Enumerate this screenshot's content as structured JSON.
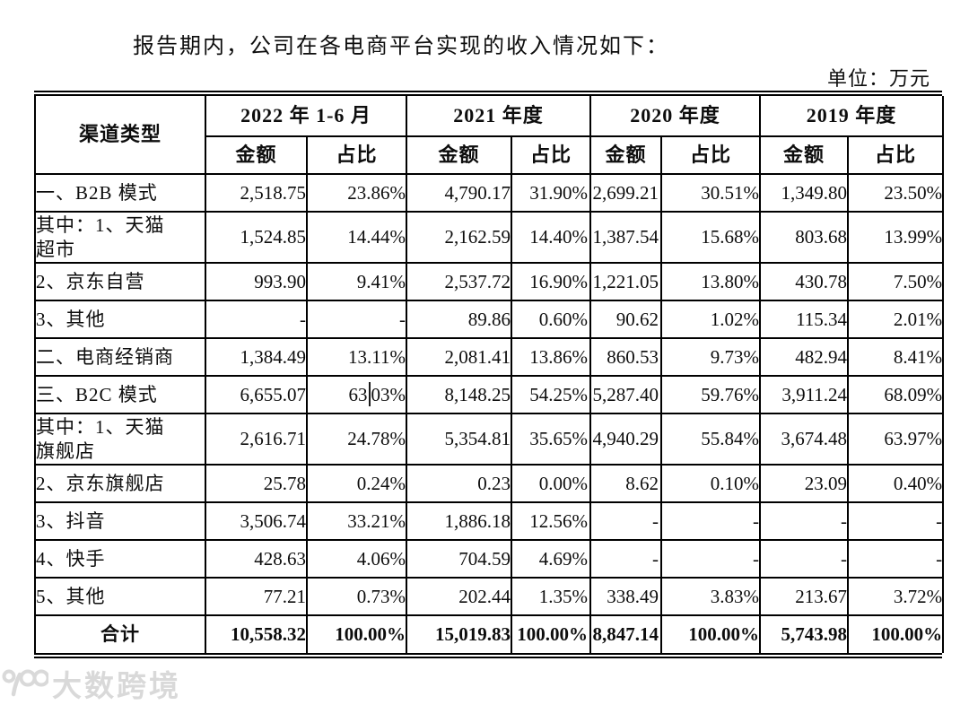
{
  "page": {
    "intro_text": "报告期内，公司在各电商平台实现的收入情况如下：",
    "unit_label": "单位：万元"
  },
  "table": {
    "corner_header": "渠道类型",
    "period_headers": [
      "2022 年 1-6 月",
      "2021 年度",
      "2020 年度",
      "2019 年度"
    ],
    "sub_headers": [
      "金额",
      "占比"
    ],
    "rows": [
      {
        "label": "一、B2B 模式",
        "tall": false,
        "total": false,
        "cells": [
          "2,518.75",
          "23.86%",
          "4,790.17",
          "31.90%",
          "2,699.21",
          "30.51%",
          "1,349.80",
          "23.50%"
        ]
      },
      {
        "label": "其中：1、天猫\n超市",
        "tall": true,
        "total": false,
        "cells": [
          "1,524.85",
          "14.44%",
          "2,162.59",
          "14.40%",
          "1,387.54",
          "15.68%",
          "803.68",
          "13.99%"
        ]
      },
      {
        "label": "2、京东自营",
        "tall": false,
        "total": false,
        "cells": [
          "993.90",
          "9.41%",
          "2,537.72",
          "16.90%",
          "1,221.05",
          "13.80%",
          "430.78",
          "7.50%"
        ]
      },
      {
        "label": "3、其他",
        "tall": false,
        "total": false,
        "cells": [
          "-",
          "-",
          "89.86",
          "0.60%",
          "90.62",
          "1.02%",
          "115.34",
          "2.01%"
        ]
      },
      {
        "label": "二、电商经销商",
        "tall": false,
        "total": false,
        "cells": [
          "1,384.49",
          "13.11%",
          "2,081.41",
          "13.86%",
          "860.53",
          "9.73%",
          "482.94",
          "8.41%"
        ]
      },
      {
        "label": "三、B2C 模式",
        "tall": false,
        "total": false,
        "cells": [
          "6,655.07",
          "63|03%",
          "8,148.25",
          "54.25%",
          "5,287.40",
          "59.76%",
          "3,911.24",
          "68.09%"
        ]
      },
      {
        "label": "其中：1、天猫\n旗舰店",
        "tall": true,
        "total": false,
        "cells": [
          "2,616.71",
          "24.78%",
          "5,354.81",
          "35.65%",
          "4,940.29",
          "55.84%",
          "3,674.48",
          "63.97%"
        ]
      },
      {
        "label": "2、京东旗舰店",
        "tall": false,
        "total": false,
        "cells": [
          "25.78",
          "0.24%",
          "0.23",
          "0.00%",
          "8.62",
          "0.10%",
          "23.09",
          "0.40%"
        ]
      },
      {
        "label": "3、抖音",
        "tall": false,
        "total": false,
        "cells": [
          "3,506.74",
          "33.21%",
          "1,886.18",
          "12.56%",
          "-",
          "-",
          "-",
          "-"
        ]
      },
      {
        "label": "4、快手",
        "tall": false,
        "total": false,
        "cells": [
          "428.63",
          "4.06%",
          "704.59",
          "4.69%",
          "-",
          "-",
          "-",
          "-"
        ]
      },
      {
        "label": "5、其他",
        "tall": false,
        "total": false,
        "cells": [
          "77.21",
          "0.73%",
          "202.44",
          "1.35%",
          "338.49",
          "3.83%",
          "213.67",
          "3.72%"
        ]
      },
      {
        "label": "合计",
        "tall": false,
        "total": true,
        "cells": [
          "10,558.32",
          "100.00%",
          "15,019.83",
          "100.00%",
          "8,847.14",
          "100.00%",
          "5,743.98",
          "100.00%"
        ]
      }
    ]
  },
  "watermark": {
    "text": "大数跨境",
    "logo": "k100-logo",
    "color": "#d9d9d9"
  },
  "colors": {
    "text": "#0d0d0d",
    "border": "#000000",
    "background": "#ffffff"
  }
}
